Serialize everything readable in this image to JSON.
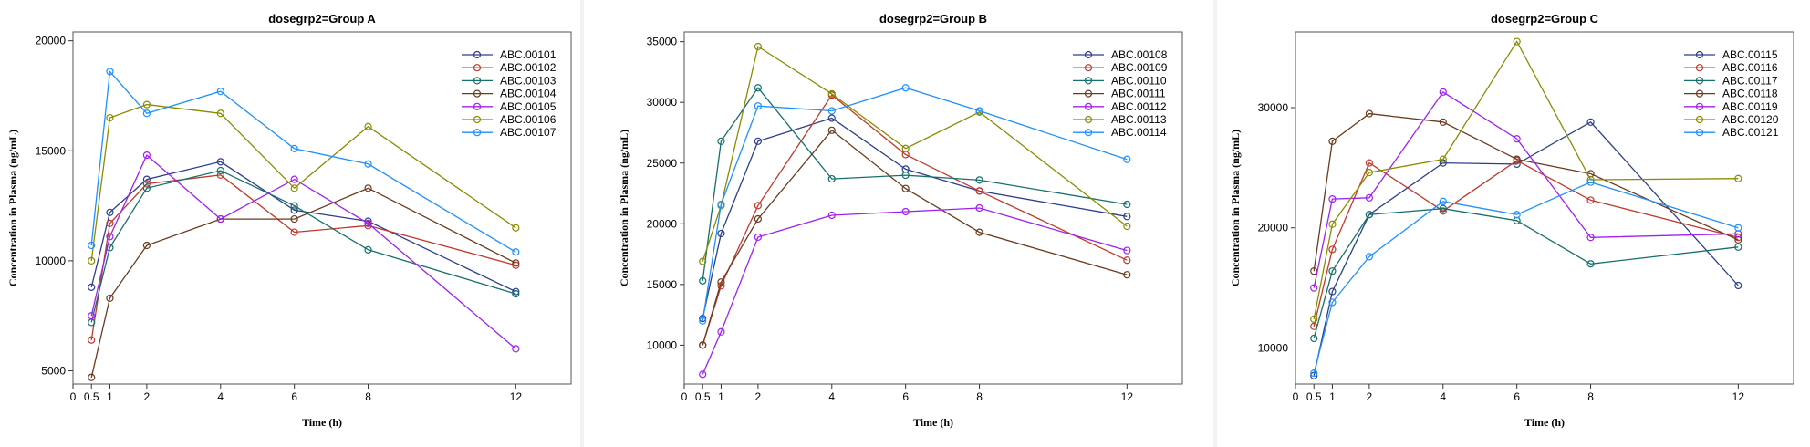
{
  "chart_data": [
    {
      "type": "line",
      "title": "dosegrp2=Group A",
      "xlabel": "Time (h)",
      "ylabel": "Concentration in Plasma (ng/mL)",
      "x": [
        0.5,
        1,
        2,
        4,
        6,
        8,
        12
      ],
      "xticks": [
        0,
        0.5,
        1,
        2,
        4,
        6,
        8,
        12
      ],
      "xtick_labels": [
        "0",
        "0.5",
        "1",
        "2",
        "4",
        "6",
        "8",
        "12"
      ],
      "xlim": [
        0,
        13.5
      ],
      "ylim": [
        4400,
        20400
      ],
      "yticks": [
        5000,
        10000,
        15000,
        20000
      ],
      "legend": "top-right",
      "series": [
        {
          "name": "ABC.00101",
          "color": "#2c3e8c",
          "values": [
            8800,
            12200,
            13700,
            14500,
            12300,
            11800,
            8600
          ]
        },
        {
          "name": "ABC.00102",
          "color": "#c0392b",
          "values": [
            6400,
            11700,
            13500,
            13900,
            11300,
            11600,
            9800
          ]
        },
        {
          "name": "ABC.00103",
          "color": "#16706b",
          "values": [
            7200,
            10600,
            13300,
            14100,
            12500,
            10500,
            8500
          ]
        },
        {
          "name": "ABC.00104",
          "color": "#6b3a1f",
          "values": [
            4700,
            8300,
            10700,
            11900,
            11900,
            13300,
            9900
          ]
        },
        {
          "name": "ABC.00105",
          "color": "#a020f0",
          "values": [
            7500,
            11100,
            14800,
            11900,
            13700,
            11700,
            6000
          ]
        },
        {
          "name": "ABC.00106",
          "color": "#8a8c00",
          "values": [
            10000,
            16500,
            17100,
            16700,
            13300,
            16100,
            11500
          ]
        },
        {
          "name": "ABC.00107",
          "color": "#1e90ff",
          "values": [
            10700,
            18600,
            16700,
            17700,
            15100,
            14400,
            10400
          ]
        }
      ]
    },
    {
      "type": "line",
      "title": "dosegrp2=Group B",
      "xlabel": "Time (h)",
      "ylabel": "Concentration in Plasma (ng/mL)",
      "x": [
        0.5,
        1,
        2,
        4,
        6,
        8,
        12
      ],
      "xticks": [
        0,
        0.5,
        1,
        2,
        4,
        6,
        8,
        12
      ],
      "xtick_labels": [
        "0",
        "0.5",
        "1",
        "2",
        "4",
        "6",
        "8",
        "12"
      ],
      "xlim": [
        0,
        13.5
      ],
      "ylim": [
        6800,
        35800
      ],
      "yticks": [
        10000,
        15000,
        20000,
        25000,
        30000,
        35000
      ],
      "legend": "top-right",
      "series": [
        {
          "name": "ABC.00108",
          "color": "#2c3e8c",
          "values": [
            12200,
            19200,
            26800,
            28700,
            24500,
            22700,
            20600
          ]
        },
        {
          "name": "ABC.00109",
          "color": "#c0392b",
          "values": [
            10000,
            14900,
            21500,
            30600,
            25700,
            22700,
            17000
          ]
        },
        {
          "name": "ABC.00110",
          "color": "#16706b",
          "values": [
            15300,
            26800,
            31200,
            23700,
            24000,
            23600,
            21600
          ]
        },
        {
          "name": "ABC.00111",
          "color": "#6b3a1f",
          "values": [
            10000,
            15200,
            20400,
            27700,
            22900,
            19300,
            15800
          ]
        },
        {
          "name": "ABC.00112",
          "color": "#a020f0",
          "values": [
            7600,
            11100,
            18900,
            20700,
            21000,
            21300,
            17800
          ]
        },
        {
          "name": "ABC.00113",
          "color": "#8a8c00",
          "values": [
            16900,
            21500,
            34600,
            30700,
            26200,
            29200,
            19800
          ]
        },
        {
          "name": "ABC.00114",
          "color": "#1e90ff",
          "values": [
            12000,
            21600,
            29700,
            29300,
            31200,
            29300,
            25300
          ]
        }
      ]
    },
    {
      "type": "line",
      "title": "dosegrp2=Group C",
      "xlabel": "Time (h)",
      "ylabel": "Concentration in Plasma (ng/mL)",
      "x": [
        0.5,
        1,
        2,
        4,
        6,
        8,
        12
      ],
      "xticks": [
        0,
        0.5,
        1,
        2,
        4,
        6,
        8,
        12
      ],
      "xtick_labels": [
        "0",
        "0.5",
        "1",
        "2",
        "4",
        "6",
        "8",
        "12"
      ],
      "xlim": [
        0,
        13.5
      ],
      "ylim": [
        7000,
        36300
      ],
      "yticks": [
        10000,
        20000,
        30000
      ],
      "legend": "top-right",
      "series": [
        {
          "name": "ABC.00115",
          "color": "#2c3e8c",
          "values": [
            7700,
            14700,
            21100,
            25400,
            25300,
            28800,
            15200
          ]
        },
        {
          "name": "ABC.00116",
          "color": "#c0392b",
          "values": [
            11800,
            18200,
            25400,
            21400,
            25600,
            22300,
            19200
          ]
        },
        {
          "name": "ABC.00117",
          "color": "#16706b",
          "values": [
            10800,
            16400,
            21100,
            21600,
            20600,
            17000,
            18400
          ]
        },
        {
          "name": "ABC.00118",
          "color": "#6b3a1f",
          "values": [
            16400,
            27200,
            29500,
            28800,
            25700,
            24500,
            19000
          ]
        },
        {
          "name": "ABC.00119",
          "color": "#a020f0",
          "values": [
            15000,
            22400,
            22500,
            31300,
            27400,
            19200,
            19500
          ]
        },
        {
          "name": "ABC.00120",
          "color": "#8a8c00",
          "values": [
            12400,
            20300,
            24600,
            25700,
            35500,
            24000,
            24100
          ]
        },
        {
          "name": "ABC.00121",
          "color": "#1e90ff",
          "values": [
            7900,
            13800,
            17600,
            22200,
            21100,
            23800,
            20000
          ]
        }
      ]
    }
  ]
}
